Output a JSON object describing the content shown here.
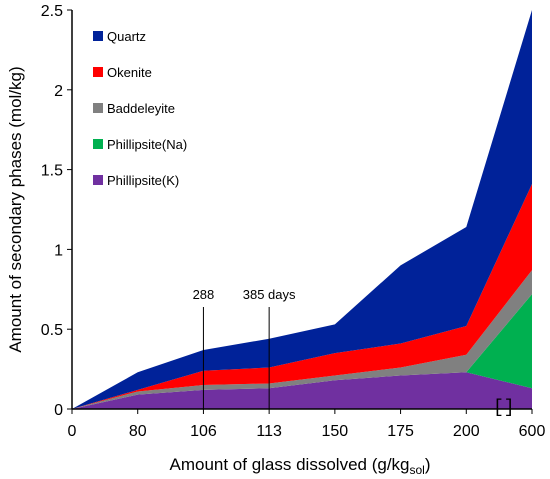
{
  "chart_data": {
    "type": "area",
    "stacked": true,
    "categories": [
      "0",
      "80",
      "106",
      "113",
      "150",
      "175",
      "200",
      "600"
    ],
    "xlabel": "Amount of glass dissolved (g/kg",
    "xlabel_sub": "sol",
    "xlabel_close": ")",
    "ylabel": "Amount of secondary phases (mol/kg)",
    "ylim": [
      0,
      2.5
    ],
    "yticks": [
      "0",
      "0.5",
      "1",
      "1.5",
      "2",
      "2.5"
    ],
    "ytick_values": [
      0,
      0.5,
      1,
      1.5,
      2,
      2.5
    ],
    "grid": false,
    "legend_position": "top-left",
    "series": [
      {
        "name": "Phillipsite(K)",
        "color": "#7030A0",
        "values": [
          0,
          0.09,
          0.12,
          0.13,
          0.18,
          0.21,
          0.23,
          0.13
        ]
      },
      {
        "name": "Phillipsite(Na)",
        "color": "#00B050",
        "values": [
          0,
          0,
          0,
          0,
          0,
          0,
          0,
          0.59
        ]
      },
      {
        "name": "Baddeleyite",
        "color": "#808080",
        "values": [
          0,
          0.02,
          0.03,
          0.03,
          0.03,
          0.05,
          0.11,
          0.15
        ]
      },
      {
        "name": "Okenite",
        "color": "#FF0000",
        "values": [
          0,
          0.01,
          0.09,
          0.1,
          0.14,
          0.15,
          0.18,
          0.54
        ]
      },
      {
        "name": "Quartz",
        "color": "#002299",
        "values": [
          0,
          0.11,
          0.13,
          0.18,
          0.18,
          0.49,
          0.62,
          1.09
        ]
      }
    ],
    "legend_order": [
      "Quartz",
      "Okenite",
      "Baddeleyite",
      "Phillipsite(Na)",
      "Phillipsite(K)"
    ],
    "annotations": [
      {
        "label": "288",
        "category_index": 2
      },
      {
        "label": "385 days",
        "category_index": 3
      }
    ],
    "break_mark": "[]"
  }
}
